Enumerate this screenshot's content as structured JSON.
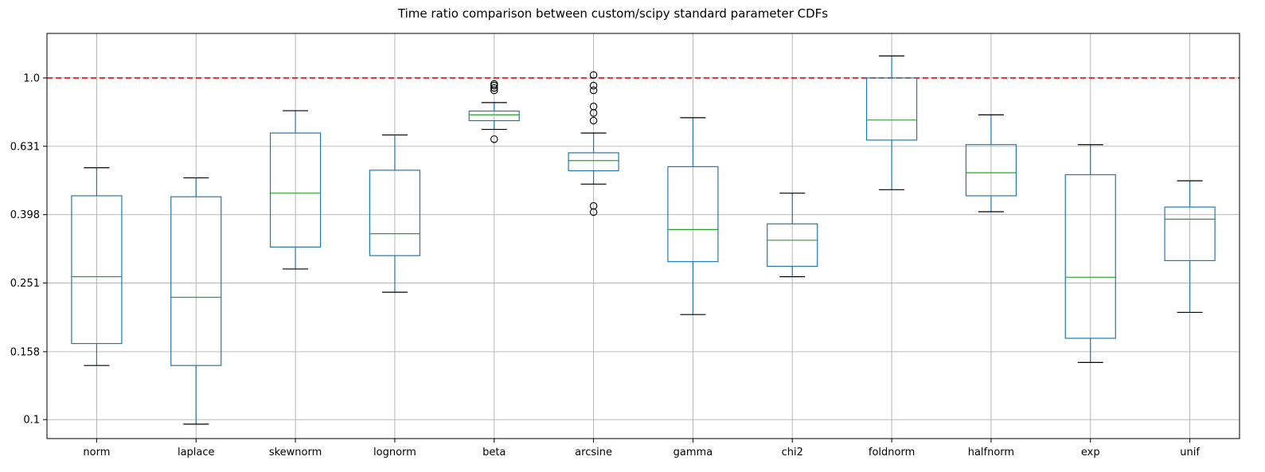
{
  "chart_data": {
    "type": "box",
    "title": "Time ratio comparison between custom/scipy standard parameter CDFs",
    "xlabel": "",
    "ylabel": "",
    "yscale": "log",
    "ylim": [
      0.088,
      1.35
    ],
    "y_ticks": [
      0.1,
      0.158,
      0.251,
      0.398,
      0.631,
      1.0
    ],
    "y_tick_labels": [
      "0.1",
      "0.158",
      "0.251",
      "0.398",
      "0.631",
      "1.0"
    ],
    "grid": true,
    "reference_line": {
      "y": 1.0,
      "color": "#ff0000",
      "style": "dashed"
    },
    "categories": [
      "norm",
      "laplace",
      "skewnorm",
      "lognorm",
      "beta",
      "arcsine",
      "gamma",
      "chi2",
      "foldnorm",
      "halfnorm",
      "exp",
      "unif"
    ],
    "boxes": [
      {
        "label": "norm",
        "whislo": 0.144,
        "q1": 0.167,
        "med": 0.262,
        "q3": 0.452,
        "whishi": 0.546,
        "fliers": []
      },
      {
        "label": "laplace",
        "whislo": 0.097,
        "q1": 0.144,
        "med": 0.228,
        "q3": 0.449,
        "whishi": 0.51,
        "fliers": []
      },
      {
        "label": "skewnorm",
        "whislo": 0.276,
        "q1": 0.32,
        "med": 0.46,
        "q3": 0.69,
        "whishi": 0.802,
        "fliers": []
      },
      {
        "label": "lognorm",
        "whislo": 0.236,
        "q1": 0.302,
        "med": 0.35,
        "q3": 0.537,
        "whishi": 0.681,
        "fliers": []
      },
      {
        "label": "beta",
        "whislo": 0.707,
        "q1": 0.75,
        "med": 0.78,
        "q3": 0.8,
        "whishi": 0.847,
        "fliers": [
          0.662,
          0.92,
          0.935,
          0.95,
          0.96
        ]
      },
      {
        "label": "arcsine",
        "whislo": 0.489,
        "q1": 0.535,
        "med": 0.573,
        "q3": 0.604,
        "whishi": 0.69,
        "fliers": [
          0.405,
          0.422,
          0.75,
          0.79,
          0.825,
          0.92,
          0.95,
          1.02
        ]
      },
      {
        "label": "gamma",
        "whislo": 0.203,
        "q1": 0.29,
        "med": 0.36,
        "q3": 0.55,
        "whishi": 0.765,
        "fliers": []
      },
      {
        "label": "chi2",
        "whislo": 0.262,
        "q1": 0.281,
        "med": 0.335,
        "q3": 0.374,
        "whishi": 0.46,
        "fliers": []
      },
      {
        "label": "foldnorm",
        "whislo": 0.471,
        "q1": 0.658,
        "med": 0.753,
        "q3": 1.0,
        "whishi": 1.16,
        "fliers": []
      },
      {
        "label": "halfnorm",
        "whislo": 0.406,
        "q1": 0.452,
        "med": 0.528,
        "q3": 0.638,
        "whishi": 0.78,
        "fliers": []
      },
      {
        "label": "exp",
        "whislo": 0.147,
        "q1": 0.173,
        "med": 0.261,
        "q3": 0.521,
        "whishi": 0.638,
        "fliers": []
      },
      {
        "label": "unif",
        "whislo": 0.206,
        "q1": 0.292,
        "med": 0.386,
        "q3": 0.419,
        "whishi": 0.5,
        "fliers": []
      }
    ],
    "colors": {
      "box": "#1f77b4",
      "median": "#2ca02c",
      "whisker": "#1f77b4",
      "cap": "#000000",
      "flier": "#000000",
      "grid": "#b0b0b0",
      "reference": "#ff0000"
    }
  }
}
